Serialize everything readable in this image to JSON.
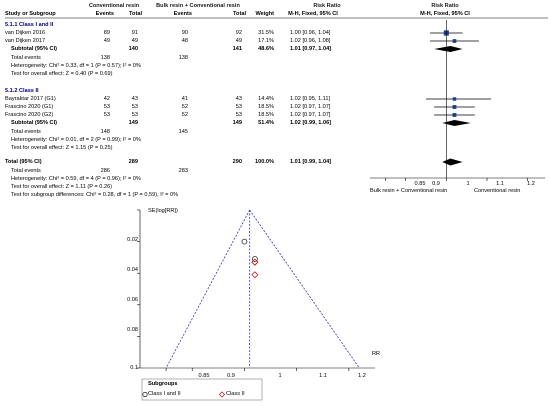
{
  "chart_data": [
    {
      "type": "table",
      "subtype": "forest-plot",
      "headers": {
        "col1_group": "Conventional resin",
        "col2_group": "Bulk resin + Conventional resin",
        "rr_group": "Risk Ratio",
        "plot_group": "Risk Ratio",
        "study": "Study or Subgroup",
        "events1": "Events",
        "total1": "Total",
        "events2": "Events",
        "total2": "Total",
        "weight": "Weight",
        "rr_method": "M-H, Fixed, 95% CI",
        "plot_method": "M-H, Fixed, 95% CI"
      },
      "sections": [
        {
          "title": "5.1.1 Class I and II",
          "studies": [
            {
              "name": "van Dijken 2016",
              "e1": "89",
              "t1": "91",
              "e2": "90",
              "t2": "92",
              "weight": "31.5%",
              "ci": "1.00 [0.96, 1.04]",
              "rr": 1.0,
              "lo": 0.96,
              "hi": 1.04
            },
            {
              "name": "van Dijken 2017",
              "e1": "49",
              "t1": "49",
              "e2": "48",
              "t2": "49",
              "weight": "17.1%",
              "ci": "1.02 [0.96, 1.08]",
              "rr": 1.02,
              "lo": 0.96,
              "hi": 1.08
            }
          ],
          "subtotal": {
            "label": "Subtotal (95% CI)",
            "t1": "140",
            "t2": "141",
            "weight": "48.6%",
            "ci": "1.01 [0.97, 1.04]",
            "rr": 1.01,
            "lo": 0.97,
            "hi": 1.04
          },
          "total_events": {
            "label": "Total events",
            "e1": "138",
            "e2": "138"
          },
          "heterogeneity": "Heterogeneity: Chi² = 0.33, df = 1 (P = 0.57); I² = 0%",
          "overall": "Test for overall effect: Z = 0.40 (P = 0.69)"
        },
        {
          "title": "5.1.2 Class II",
          "studies": [
            {
              "name": "Bayraktar 2017 (G1)",
              "e1": "42",
              "t1": "43",
              "e2": "41",
              "t2": "43",
              "weight": "14.4%",
              "ci": "1.02 [0.95, 1.11]",
              "rr": 1.02,
              "lo": 0.95,
              "hi": 1.11
            },
            {
              "name": "Frascino 2020 (G1)",
              "e1": "53",
              "t1": "53",
              "e2": "52",
              "t2": "53",
              "weight": "18.5%",
              "ci": "1.02 [0.97, 1.07]",
              "rr": 1.02,
              "lo": 0.97,
              "hi": 1.07
            },
            {
              "name": "Frascino 2020 (G2)",
              "e1": "53",
              "t1": "53",
              "e2": "52",
              "t2": "53",
              "weight": "18.5%",
              "ci": "1.02 [0.97, 1.07]",
              "rr": 1.02,
              "lo": 0.97,
              "hi": 1.07
            }
          ],
          "subtotal": {
            "label": "Subtotal (95% CI)",
            "t1": "149",
            "t2": "149",
            "weight": "51.4%",
            "ci": "1.02 [0.99, 1.06]",
            "rr": 1.02,
            "lo": 0.99,
            "hi": 1.06
          },
          "total_events": {
            "label": "Total events",
            "e1": "148",
            "e2": "145"
          },
          "heterogeneity": "Heterogeneity: Chi² = 0.01, df = 2 (P = 0.99); I² = 0%",
          "overall": "Test for overall effect: Z = 1.15 (P = 0.25)"
        }
      ],
      "total": {
        "label": "Total (95% CI)",
        "t1": "289",
        "t2": "290",
        "weight": "100.0%",
        "ci": "1.01 [0.99, 1.04]",
        "rr": 1.01,
        "lo": 0.99,
        "hi": 1.04
      },
      "total_events": {
        "label": "Total events",
        "e1": "286",
        "e2": "283"
      },
      "heterogeneity": "Heterogeneity: Chi² = 0.59, df = 4 (P = 0.96); I² = 0%",
      "overall": "Test for overall effect: Z = 1.11 (P = 0.26)",
      "subgroup_test": "Test for subgroup differences: Chi² = 0.28, df = 1 (P = 0.59), I² = 0%",
      "xaxis": {
        "ticks": [
          "0.85",
          "0.9",
          "1",
          "1.1",
          "1.2"
        ],
        "tick_values": [
          0.85,
          0.9,
          1,
          1.1,
          1.2
        ],
        "xlim": [
          0.8,
          1.25
        ],
        "left_label": "Bulk resin + Conventional resin",
        "right_label": "Conventional resin"
      },
      "colors": {
        "study_box": "#1f3c8c",
        "diamond": "#000000"
      }
    },
    {
      "type": "scatter",
      "subtype": "funnel-plot",
      "ylabel": "SE(log[RR])",
      "xlabel": "RR",
      "x_ticks": [
        "0.85",
        "0.9",
        "1",
        "1.1",
        "1.2"
      ],
      "x_tick_values": [
        0.85,
        0.9,
        1,
        1.1,
        1.2
      ],
      "y_ticks": [
        "0",
        "0.02",
        "0.04",
        "0.06",
        "0.08",
        "0.1"
      ],
      "y_tick_values": [
        0,
        0.02,
        0.04,
        0.06,
        0.08,
        0.1
      ],
      "xlim": [
        0.8,
        1.25
      ],
      "ylim": [
        0,
        0.1
      ],
      "series": [
        {
          "name": "Class I and II",
          "marker": "circle",
          "color": "#333333",
          "points": [
            [
              1.0,
              0.02
            ],
            [
              1.02,
              0.031
            ]
          ]
        },
        {
          "name": "Class II",
          "marker": "diamond",
          "color": "#cc2222",
          "points": [
            [
              1.02,
              0.033
            ],
            [
              1.02,
              0.033
            ],
            [
              1.02,
              0.041
            ]
          ]
        }
      ],
      "pooled_rr": 1.01,
      "legend": {
        "title": "Subgroups",
        "placement": "bottom-left"
      },
      "colors": {
        "funnel": "#3333cc"
      }
    }
  ]
}
